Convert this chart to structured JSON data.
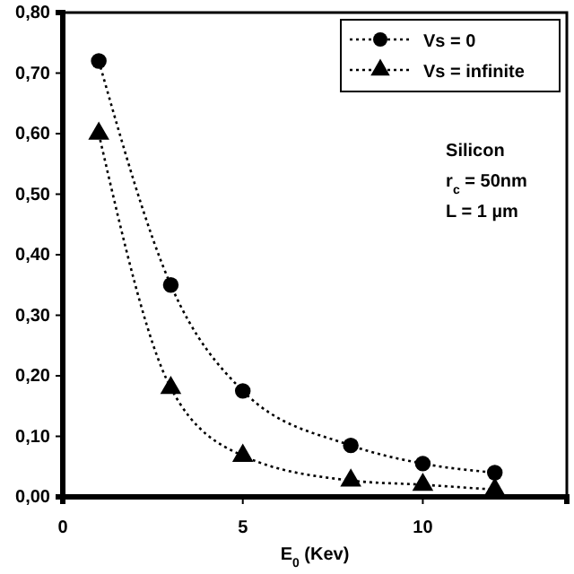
{
  "chart_data": {
    "type": "line",
    "xlabel": "E$_{0}$ (Kev)",
    "x": [
      1,
      3,
      5,
      8,
      10,
      12
    ],
    "series": [
      {
        "name": "Vs = 0",
        "color": "#000000",
        "marker": "circle",
        "values": [
          0.72,
          0.35,
          0.175,
          0.085,
          0.055,
          0.04
        ]
      },
      {
        "name": "Vs = infinite",
        "color": "#000000",
        "marker": "triangle",
        "values": [
          0.6,
          0.18,
          0.068,
          0.027,
          0.02,
          0.012
        ]
      }
    ],
    "xlim": [
      0,
      14
    ],
    "xticks": [
      0,
      5,
      10
    ],
    "ylim": [
      0,
      0.8
    ],
    "yticks": [
      {
        "value": 0,
        "label": "0,00"
      },
      {
        "value": 0.1,
        "label": "0,10"
      },
      {
        "value": 0.2,
        "label": "0,20"
      },
      {
        "value": 0.3,
        "label": "0,30"
      },
      {
        "value": 0.4,
        "label": "0,40"
      },
      {
        "value": 0.5,
        "label": "0,50"
      },
      {
        "value": 0.6,
        "label": "0,60"
      },
      {
        "value": 0.7,
        "label": "0,70"
      },
      {
        "value": 0.8,
        "label": "0,80"
      }
    ],
    "line_style": "dotted",
    "legend": "top right",
    "grid": false,
    "annotations": [
      "Silicon",
      "r$_{c}$ = 50nm",
      "L = 1 µm"
    ]
  }
}
